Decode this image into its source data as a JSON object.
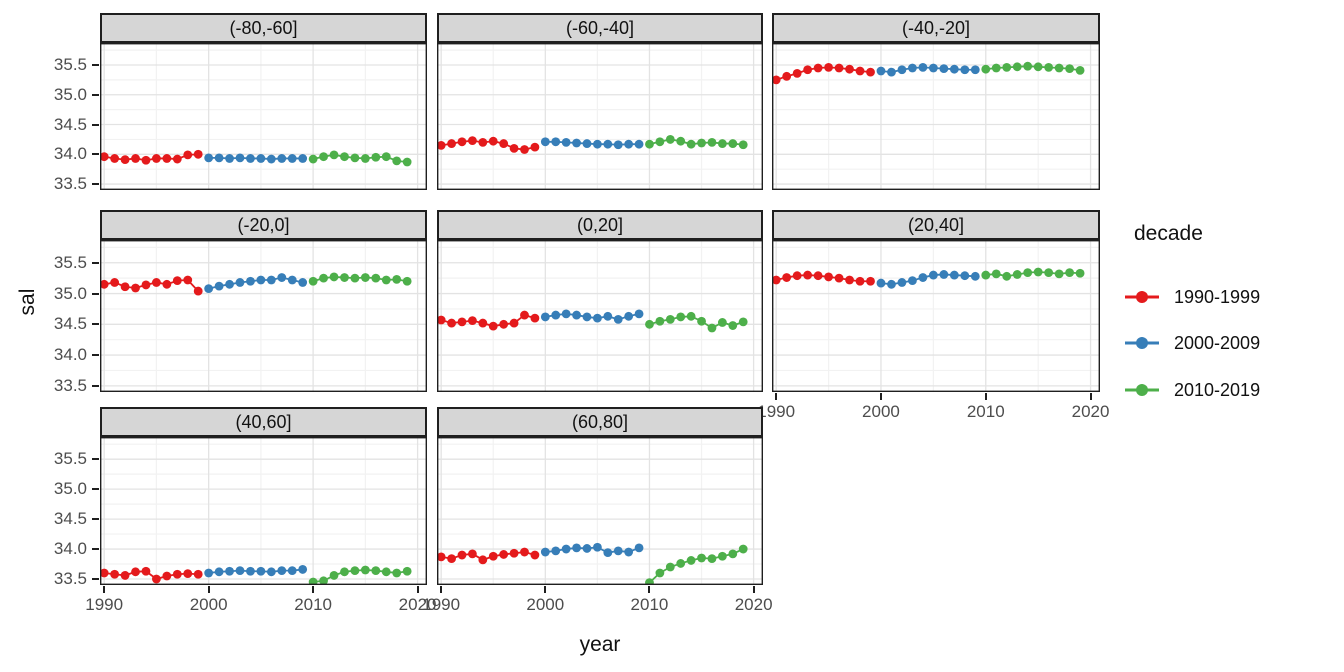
{
  "figure": {
    "y_axis_title": "sal",
    "x_axis_title": "year"
  },
  "legend": {
    "title": "decade",
    "entries": [
      {
        "label": "1990-1999",
        "color": "#E41A1C"
      },
      {
        "label": "2000-2009",
        "color": "#377EB8"
      },
      {
        "label": "2010-2019",
        "color": "#4DAF4A"
      }
    ]
  },
  "chart_data": {
    "type": "scatter",
    "xlabel": "year",
    "ylabel": "sal",
    "x_ticks": [
      1990,
      2000,
      2010,
      2020
    ],
    "y_ticks": [
      35.5,
      35.0,
      34.5,
      34.0,
      33.5
    ],
    "x_minor_ticks": [
      1995,
      2005,
      2015
    ],
    "y_minor_ticks": [
      33.25,
      33.75,
      34.25,
      34.75,
      35.25,
      35.75
    ],
    "x_domain": [
      1989.6,
      2020.9
    ],
    "y_domain": [
      33.4,
      35.87
    ],
    "grid": true,
    "legend_position": "right",
    "years": [
      1990,
      1991,
      1992,
      1993,
      1994,
      1995,
      1996,
      1997,
      1998,
      1999,
      2000,
      2001,
      2002,
      2003,
      2004,
      2005,
      2006,
      2007,
      2008,
      2009,
      2010,
      2011,
      2012,
      2013,
      2014,
      2015,
      2016,
      2017,
      2018,
      2019
    ],
    "decades": [
      {
        "name": "1990-1999",
        "color": "#E41A1C",
        "start": 1990,
        "end": 1999
      },
      {
        "name": "2000-2009",
        "color": "#377EB8",
        "start": 2000,
        "end": 2009
      },
      {
        "name": "2010-2019",
        "color": "#4DAF4A",
        "start": 2010,
        "end": 2019
      }
    ],
    "facets": [
      {
        "label": "(-80,-60]",
        "values": [
          33.96,
          33.93,
          33.91,
          33.93,
          33.9,
          33.93,
          33.93,
          33.92,
          33.99,
          34.0,
          33.94,
          33.94,
          33.93,
          33.94,
          33.93,
          33.93,
          33.92,
          33.93,
          33.93,
          33.93,
          33.92,
          33.96,
          33.99,
          33.96,
          33.94,
          33.93,
          33.95,
          33.96,
          33.89,
          33.87
        ]
      },
      {
        "label": "(-60,-40]",
        "values": [
          34.15,
          34.18,
          34.21,
          34.23,
          34.2,
          34.22,
          34.18,
          34.1,
          34.08,
          34.12,
          34.21,
          34.21,
          34.2,
          34.19,
          34.18,
          34.17,
          34.17,
          34.16,
          34.17,
          34.17,
          34.17,
          34.21,
          34.25,
          34.22,
          34.17,
          34.19,
          34.2,
          34.18,
          34.18,
          34.16
        ]
      },
      {
        "label": "(-40,-20]",
        "values": [
          35.25,
          35.31,
          35.36,
          35.42,
          35.45,
          35.46,
          35.45,
          35.43,
          35.4,
          35.38,
          35.4,
          35.38,
          35.42,
          35.45,
          35.46,
          35.45,
          35.44,
          35.43,
          35.42,
          35.42,
          35.43,
          35.45,
          35.46,
          35.47,
          35.48,
          35.47,
          35.46,
          35.45,
          35.44,
          35.41
        ]
      },
      {
        "label": "(-20,0]",
        "values": [
          35.15,
          35.18,
          35.11,
          35.09,
          35.14,
          35.18,
          35.15,
          35.21,
          35.22,
          35.04,
          35.08,
          35.12,
          35.15,
          35.18,
          35.2,
          35.22,
          35.22,
          35.26,
          35.22,
          35.18,
          35.2,
          35.25,
          35.27,
          35.26,
          35.25,
          35.26,
          35.25,
          35.22,
          35.23,
          35.2
        ]
      },
      {
        "label": "(0,20]",
        "values": [
          34.57,
          34.52,
          34.54,
          34.56,
          34.52,
          34.47,
          34.5,
          34.52,
          34.65,
          34.6,
          34.62,
          34.65,
          34.67,
          34.65,
          34.62,
          34.6,
          34.63,
          34.58,
          34.63,
          34.67,
          34.5,
          34.55,
          34.58,
          34.62,
          34.63,
          34.55,
          34.44,
          34.53,
          34.48,
          34.54
        ]
      },
      {
        "label": "(20,40]",
        "values": [
          35.22,
          35.26,
          35.29,
          35.3,
          35.29,
          35.27,
          35.25,
          35.22,
          35.2,
          35.2,
          35.17,
          35.15,
          35.18,
          35.21,
          35.26,
          35.3,
          35.31,
          35.3,
          35.29,
          35.28,
          35.3,
          35.32,
          35.28,
          35.31,
          35.34,
          35.35,
          35.34,
          35.32,
          35.34,
          35.33
        ]
      },
      {
        "label": "(40,60]",
        "values": [
          33.6,
          33.58,
          33.56,
          33.62,
          33.63,
          33.5,
          33.55,
          33.58,
          33.59,
          33.58,
          33.6,
          33.62,
          33.63,
          33.64,
          33.63,
          33.63,
          33.62,
          33.64,
          33.64,
          33.66,
          33.45,
          33.47,
          33.56,
          33.62,
          33.64,
          33.65,
          33.64,
          33.62,
          33.6,
          33.63
        ]
      },
      {
        "label": "(60,80]",
        "values": [
          33.87,
          33.84,
          33.9,
          33.92,
          33.82,
          33.88,
          33.91,
          33.93,
          33.95,
          33.9,
          33.95,
          33.97,
          34.0,
          34.02,
          34.01,
          34.03,
          33.94,
          33.97,
          33.95,
          34.02,
          33.44,
          33.6,
          33.7,
          33.76,
          33.81,
          33.85,
          33.84,
          33.88,
          33.92,
          34.0
        ]
      }
    ]
  }
}
